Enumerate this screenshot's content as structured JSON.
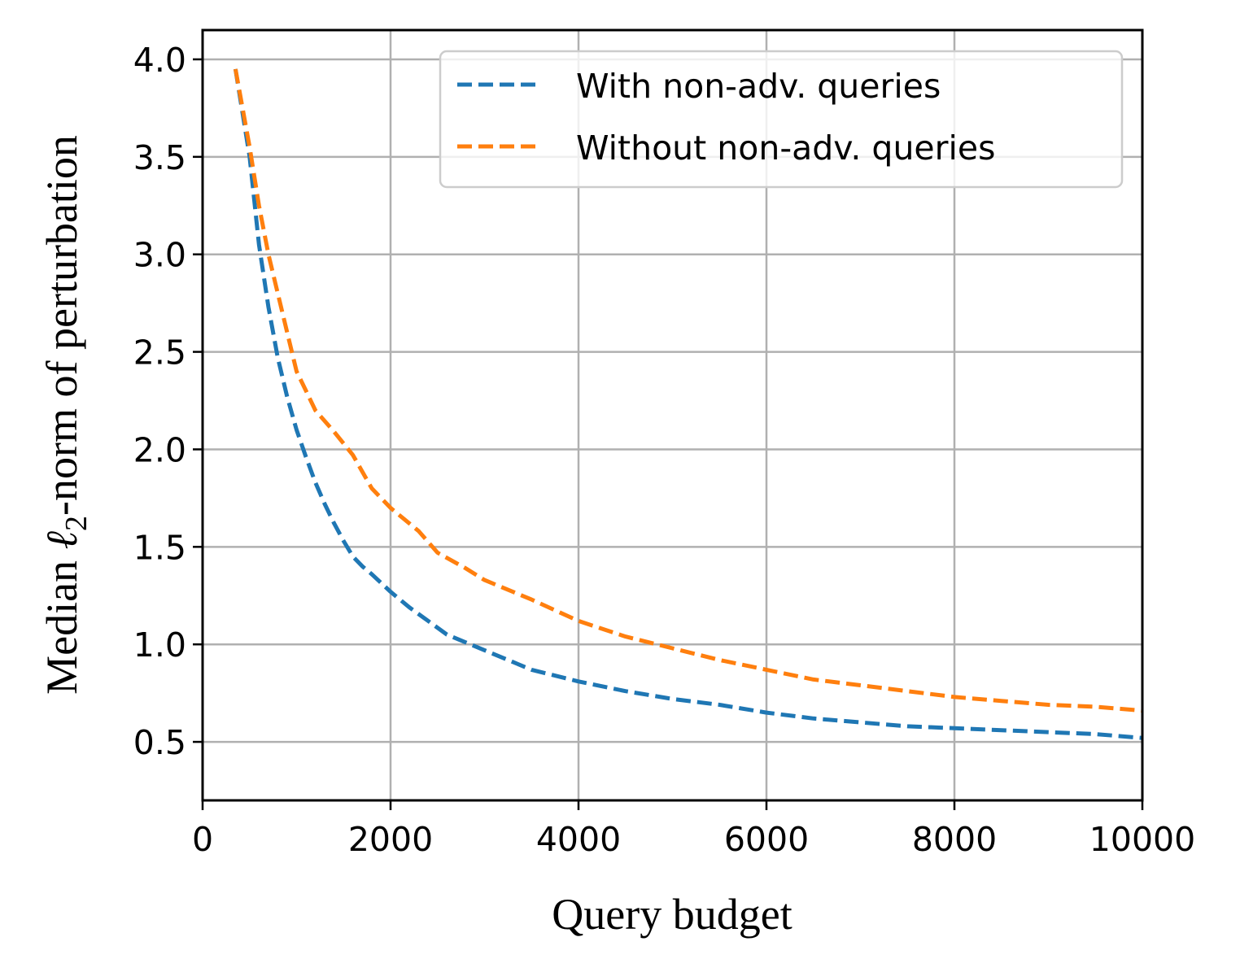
{
  "chart_data": {
    "type": "line",
    "xlabel": "Query budget",
    "ylabel": {
      "prefix": "Median ",
      "symbol": "ℓ",
      "subscript": "2",
      "suffix": "-norm of perturbation"
    },
    "xlim": [
      0,
      10000
    ],
    "ylim": [
      0.2,
      4.15
    ],
    "xticks": [
      0,
      2000,
      4000,
      6000,
      8000,
      10000
    ],
    "xtick_labels": [
      "0",
      "2000",
      "4000",
      "6000",
      "8000",
      "10000"
    ],
    "yticks": [
      0.5,
      1.0,
      1.5,
      2.0,
      2.5,
      3.0,
      3.5,
      4.0
    ],
    "ytick_labels": [
      "0.5",
      "1.0",
      "1.5",
      "2.0",
      "2.5",
      "3.0",
      "3.5",
      "4.0"
    ],
    "grid": true,
    "legend_position": "top-right",
    "series": [
      {
        "name": "With non-adv. queries",
        "color": "#1f77b4",
        "style": "dashed",
        "x": [
          350,
          500,
          600,
          700,
          800,
          900,
          1000,
          1100,
          1200,
          1300,
          1400,
          1500,
          1600,
          1700,
          1800,
          2000,
          2200,
          2400,
          2600,
          2800,
          3000,
          3500,
          4000,
          4500,
          5000,
          5500,
          6000,
          6500,
          7000,
          7500,
          8000,
          8500,
          9000,
          9500,
          10000
        ],
        "y": [
          3.95,
          3.5,
          3.05,
          2.73,
          2.47,
          2.27,
          2.1,
          1.96,
          1.83,
          1.72,
          1.62,
          1.53,
          1.45,
          1.4,
          1.36,
          1.27,
          1.19,
          1.12,
          1.05,
          1.01,
          0.97,
          0.87,
          0.81,
          0.76,
          0.72,
          0.69,
          0.65,
          0.62,
          0.6,
          0.58,
          0.57,
          0.56,
          0.55,
          0.54,
          0.52
        ]
      },
      {
        "name": "Without non-adv. queries",
        "color": "#ff7f0e",
        "style": "dashed",
        "x": [
          350,
          500,
          600,
          700,
          800,
          900,
          1000,
          1100,
          1200,
          1400,
          1600,
          1800,
          2000,
          2300,
          2500,
          2800,
          3000,
          3500,
          4000,
          4500,
          5000,
          5500,
          6000,
          6500,
          7000,
          7500,
          8000,
          8500,
          9000,
          9500,
          10000
        ],
        "y": [
          3.95,
          3.55,
          3.25,
          3.0,
          2.8,
          2.6,
          2.4,
          2.3,
          2.2,
          2.09,
          1.97,
          1.8,
          1.7,
          1.58,
          1.47,
          1.39,
          1.33,
          1.23,
          1.12,
          1.04,
          0.98,
          0.92,
          0.87,
          0.82,
          0.79,
          0.76,
          0.73,
          0.71,
          0.69,
          0.68,
          0.66
        ]
      }
    ]
  }
}
